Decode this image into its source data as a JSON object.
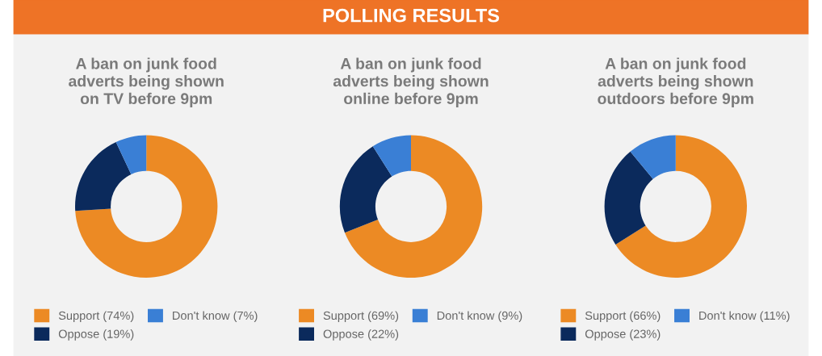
{
  "chart_data": [
    {
      "type": "donut",
      "title": "A ban on junk food\nadverts being shown\non TV before 9pm",
      "annotations": [
        "POLLING RESULTS"
      ],
      "categories": [
        "Support (74%)",
        "Oppose (19%)",
        "Don't know (7%)"
      ],
      "values": [
        74,
        19,
        7
      ],
      "colors": [
        "#ec8a24",
        "#0b2a5c",
        "#3a7fd5"
      ],
      "legend": "bottom"
    },
    {
      "type": "donut",
      "title": "A ban on junk food\nadverts being shown\nonline before 9pm",
      "categories": [
        "Support (69%)",
        "Oppose (22%)",
        "Don't know (9%)"
      ],
      "values": [
        69,
        22,
        9
      ],
      "colors": [
        "#ec8a24",
        "#0b2a5c",
        "#3a7fd5"
      ],
      "legend": "bottom"
    },
    {
      "type": "donut",
      "title": "A ban on junk food\nadverts being shown\noutdoors before 9pm",
      "categories": [
        "Support (66%)",
        "Oppose (23%)",
        "Don't know (11%)"
      ],
      "values": [
        66,
        23,
        11
      ],
      "colors": [
        "#ec8a24",
        "#0b2a5c",
        "#3a7fd5"
      ],
      "legend": "bottom"
    }
  ]
}
